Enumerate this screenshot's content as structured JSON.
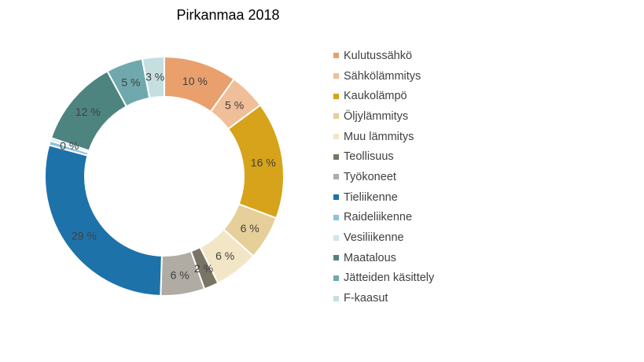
{
  "chart_data": {
    "type": "pie",
    "title": "Pirkanmaa 2018",
    "legend_position": "right",
    "categories": [
      "Kulutussähkö",
      "Sähkölämmitys",
      "Kaukolämpö",
      "Öljylämmitys",
      "Muu lämmitys",
      "Teollisuus",
      "Työkoneet",
      "Tieliikenne",
      "Raideliikenne",
      "Vesiliikenne",
      "Maatalous",
      "Jätteiden käsittely",
      "F-kaasut"
    ],
    "values": [
      10,
      5,
      16,
      6,
      6,
      2,
      6,
      29,
      0.6,
      0.4,
      12,
      5,
      3
    ],
    "labels": [
      "10 %",
      "5 %",
      "16 %",
      "6 %",
      "6 %",
      "2 %",
      "6 %",
      "29 %",
      "",
      "0 %",
      "12 %",
      "5 %",
      "3 %"
    ],
    "colors": [
      "#E9A06C",
      "#F0BE98",
      "#D6A31A",
      "#E6CF98",
      "#F3E6C6",
      "#7A7464",
      "#B0ABA3",
      "#1E72AA",
      "#89C3DD",
      "#CFE4EF",
      "#4E847F",
      "#6FA9AD",
      "#C5DFE1"
    ]
  }
}
